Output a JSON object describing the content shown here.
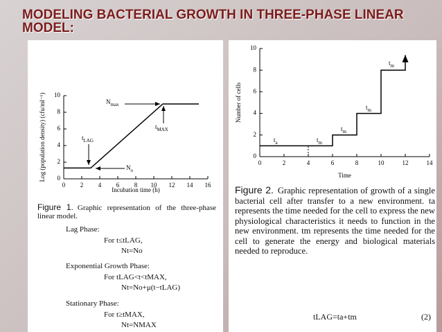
{
  "slide": {
    "title": "MODELING BACTERIAL GROWTH IN THREE-PHASE LINEAR MODEL:"
  },
  "chart_data": [
    {
      "type": "line",
      "ylabel": "Log (population density) (cfu/ml⁻¹)",
      "xlabel": "Incubation time (h)",
      "xlim": [
        0,
        16
      ],
      "xticks": [
        0,
        2,
        4,
        6,
        8,
        10,
        12,
        14,
        16
      ],
      "ylim": [
        0,
        10
      ],
      "yticks": [
        0,
        2,
        4,
        6,
        8,
        10
      ],
      "series": [
        {
          "x": [
            0,
            3,
            11,
            15
          ],
          "values": [
            1.3,
            1.3,
            9,
            9
          ],
          "color": "#000000"
        }
      ],
      "annotations": [
        {
          "text": "N",
          "sub": "max"
        },
        {
          "text": "t",
          "sub": "MAX"
        },
        {
          "text": "t",
          "sub": "LAG"
        },
        {
          "text": "N",
          "sub": "o"
        }
      ]
    },
    {
      "type": "line",
      "ylabel": "Number of cells",
      "xlabel": "Time",
      "xlim": [
        0,
        14
      ],
      "xticks": [
        0,
        2,
        4,
        6,
        8,
        10,
        12,
        14
      ],
      "ylim": [
        0,
        10
      ],
      "yticks": [
        0,
        2,
        4,
        6,
        8,
        10
      ],
      "series": [
        {
          "x": [
            0,
            6,
            6,
            8,
            8,
            10,
            10,
            12,
            12,
            12
          ],
          "values": [
            1,
            1,
            2,
            2,
            4,
            4,
            8,
            8,
            8,
            9.4
          ],
          "color": "#000000"
        }
      ],
      "annotations": [
        {
          "text": "t",
          "sub": "a"
        },
        {
          "text": "t",
          "sub": "m"
        },
        {
          "text": "t",
          "sub": "m"
        },
        {
          "text": "t",
          "sub": "m"
        },
        {
          "text": "t",
          "sub": "m"
        }
      ]
    }
  ],
  "figure1": {
    "label": "Figure 1.",
    "caption": "Graphic representation of the three-phase linear model.",
    "phases": [
      {
        "name": "Lag Phase:",
        "lines": [
          "For t≤tLAG,",
          "Nt=No"
        ]
      },
      {
        "name": "Exponential Growth Phase:",
        "lines": [
          "For tLAG<t<tMAX,",
          "Nt=No+μ(t−tLAG)"
        ]
      },
      {
        "name": "Stationary Phase:",
        "lines": [
          "For t≥tMAX,",
          "Nt=NMAX"
        ]
      }
    ]
  },
  "figure2": {
    "label": "Figure 2.",
    "caption": "Graphic representation of growth of a single bacterial cell after transfer to a new environment. ta represents the time needed for the cell to express the new physiological characteristics it needs to function in the new environment. tm represents the time needed for the cell to generate the energy and biological materials needed to reproduce.",
    "equation": "tLAG=ta+tm",
    "equation_number": "(2)"
  }
}
